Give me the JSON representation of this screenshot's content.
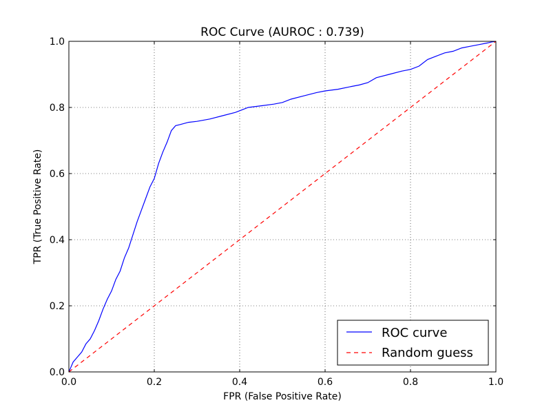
{
  "chart_data": {
    "type": "line",
    "title": "ROC Curve (AUROC :   0.739)",
    "xlabel": "FPR (False Positive Rate)",
    "ylabel": "TPR (True Positive Rate)",
    "xlim": [
      0.0,
      1.0
    ],
    "ylim": [
      0.0,
      1.0
    ],
    "xticks": [
      0.0,
      0.2,
      0.4,
      0.6,
      0.8,
      1.0
    ],
    "yticks": [
      0.0,
      0.2,
      0.4,
      0.6,
      0.8,
      1.0
    ],
    "xtick_labels": [
      "0.0",
      "0.2",
      "0.4",
      "0.6",
      "0.8",
      "1.0"
    ],
    "ytick_labels": [
      "0.0",
      "0.2",
      "0.4",
      "0.6",
      "0.8",
      "1.0"
    ],
    "grid": true,
    "legend": {
      "placement": "bottom-right",
      "entries": [
        "ROC curve",
        "Random guess"
      ]
    },
    "series": [
      {
        "name": "ROC curve",
        "style": "solid",
        "color": "#0000ff",
        "x": [
          0.0,
          0.005,
          0.01,
          0.02,
          0.03,
          0.04,
          0.05,
          0.06,
          0.07,
          0.08,
          0.09,
          0.1,
          0.11,
          0.12,
          0.13,
          0.14,
          0.15,
          0.16,
          0.17,
          0.18,
          0.19,
          0.2,
          0.21,
          0.22,
          0.23,
          0.24,
          0.25,
          0.26,
          0.28,
          0.3,
          0.33,
          0.36,
          0.39,
          0.4,
          0.42,
          0.45,
          0.48,
          0.5,
          0.52,
          0.55,
          0.58,
          0.6,
          0.63,
          0.66,
          0.68,
          0.7,
          0.72,
          0.75,
          0.78,
          0.8,
          0.82,
          0.84,
          0.86,
          0.88,
          0.9,
          0.92,
          0.94,
          0.96,
          0.98,
          0.99,
          1.0
        ],
        "y": [
          0.0,
          0.015,
          0.03,
          0.045,
          0.06,
          0.085,
          0.1,
          0.125,
          0.155,
          0.19,
          0.22,
          0.245,
          0.28,
          0.305,
          0.345,
          0.375,
          0.415,
          0.455,
          0.49,
          0.525,
          0.56,
          0.585,
          0.63,
          0.665,
          0.695,
          0.73,
          0.745,
          0.748,
          0.755,
          0.758,
          0.765,
          0.775,
          0.785,
          0.79,
          0.8,
          0.805,
          0.81,
          0.815,
          0.825,
          0.835,
          0.845,
          0.85,
          0.855,
          0.863,
          0.868,
          0.875,
          0.89,
          0.9,
          0.91,
          0.915,
          0.925,
          0.945,
          0.955,
          0.965,
          0.97,
          0.98,
          0.985,
          0.99,
          0.995,
          0.998,
          1.0
        ]
      },
      {
        "name": "Random guess",
        "style": "dashed",
        "color": "#ff0000",
        "x": [
          0.0,
          1.0
        ],
        "y": [
          0.0,
          1.0
        ]
      }
    ]
  }
}
